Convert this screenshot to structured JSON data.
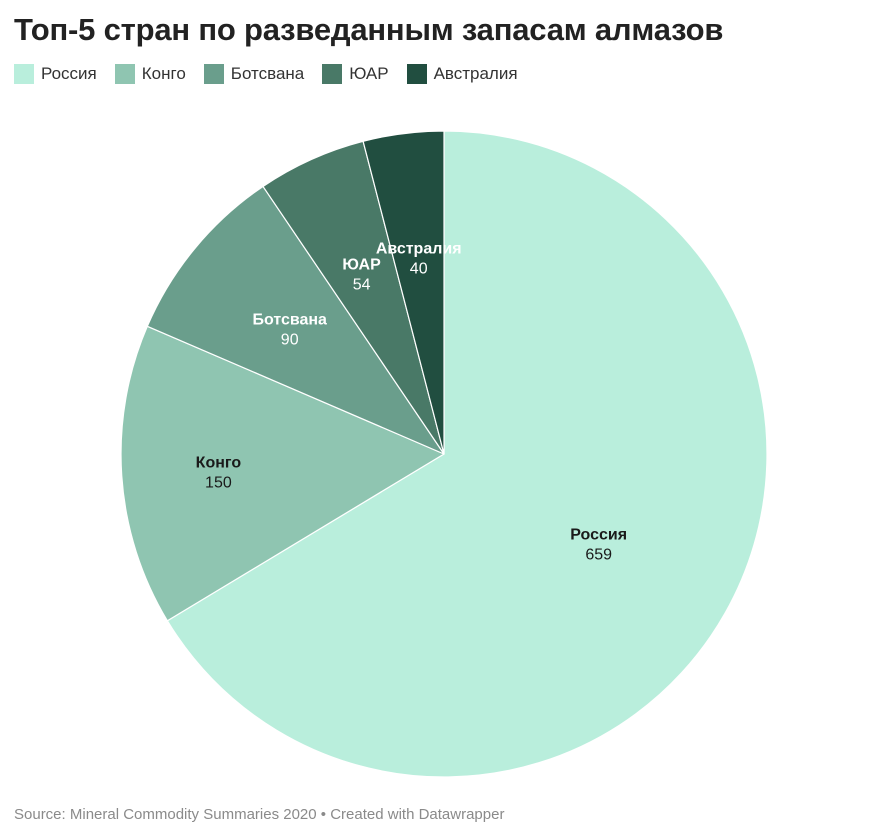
{
  "title": "Топ-5 стран по разведанным запасам алмазов",
  "source": "Source: Mineral Commodity Summaries 2020 • Created with Datawrapper",
  "chart_data": {
    "type": "pie",
    "title": "Топ-5 стран по разведанным запасам алмазов",
    "legend_position": "top-left",
    "slices": [
      {
        "label": "Россия",
        "value": 659,
        "color": "#b9eedc",
        "label_color": "#1a1a1a"
      },
      {
        "label": "Конго",
        "value": 150,
        "color": "#8fc5b1",
        "label_color": "#1a1a1a"
      },
      {
        "label": "Ботсвана",
        "value": 90,
        "color": "#6a9e8c",
        "label_color": "#ffffff"
      },
      {
        "label": "ЮАР",
        "value": 54,
        "color": "#497967",
        "label_color": "#ffffff"
      },
      {
        "label": "Австралия",
        "value": 40,
        "color": "#214e40",
        "label_color": "#ffffff"
      }
    ]
  }
}
